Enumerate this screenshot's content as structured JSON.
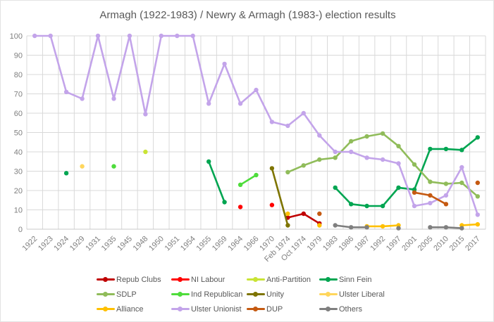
{
  "title": "Armagh (1922-1983) / Newry & Armagh (1983-) election results",
  "colors": {
    "title": "#595959",
    "axis_text": "#7f7f7f",
    "gridline": "#d9d9d9",
    "axis_line": "#c9c9c9",
    "background": "#ffffff"
  },
  "chart_data": {
    "type": "line",
    "title": "Armagh (1922-1983) / Newry & Armagh (1983-) election results",
    "xlabel": "",
    "ylabel": "",
    "grid": true,
    "legend_position": "bottom",
    "legend_layout": {
      "rows": 3,
      "columns": 4
    },
    "x_axis": {
      "label_rotation": -45
    },
    "y_axis": {
      "min": 0,
      "max": 100,
      "step": 10,
      "tick_labels": [
        "0",
        "10",
        "20",
        "30",
        "40",
        "50",
        "60",
        "70",
        "80",
        "90",
        "100"
      ]
    },
    "categories": [
      "1922",
      "1923",
      "1924",
      "1929",
      "1931",
      "1935",
      "1945",
      "1948",
      "1950",
      "1951",
      "1954",
      "1955",
      "1959",
      "1964",
      "1966",
      "1970",
      "Feb 1974",
      "Oct 1974",
      "1979",
      "1983",
      "1986",
      "1987",
      "1992",
      "1997",
      "2001",
      "2005",
      "2010",
      "2015",
      "2017"
    ],
    "series": [
      {
        "name": "Repub Clubs",
        "color": "#c00000",
        "points": [
          [
            "Feb 1974",
            6
          ],
          [
            "Oct 1974",
            8
          ],
          [
            "1979",
            3
          ]
        ]
      },
      {
        "name": "NI Labour",
        "color": "#ff0000",
        "points": [
          [
            "1964",
            11.5
          ],
          [
            "1970",
            12.5
          ]
        ]
      },
      {
        "name": "Anti-Partition",
        "color": "#c9e435",
        "points": [
          [
            "1948",
            40
          ]
        ]
      },
      {
        "name": "Sinn Fein",
        "color": "#00a551",
        "points": [
          [
            "1924",
            29
          ],
          [
            "1955",
            35
          ],
          [
            "1959",
            14
          ],
          [
            "1983",
            21.5
          ],
          [
            "1986",
            13
          ],
          [
            "1987",
            12
          ],
          [
            "1992",
            12
          ],
          [
            "1997",
            21.5
          ],
          [
            "2001",
            20.5
          ],
          [
            "2005",
            41.5
          ],
          [
            "2010",
            41.5
          ],
          [
            "2015",
            41
          ],
          [
            "2017",
            47.5
          ]
        ]
      },
      {
        "name": "SDLP",
        "color": "#90bc5a",
        "points": [
          [
            "Feb 1974",
            29.5
          ],
          [
            "Oct 1974",
            33
          ],
          [
            "1979",
            36
          ],
          [
            "1983",
            37
          ],
          [
            "1986",
            45.5
          ],
          [
            "1987",
            48
          ],
          [
            "1992",
            49.5
          ],
          [
            "1997",
            43
          ],
          [
            "2001",
            33.5
          ],
          [
            "2005",
            24.5
          ],
          [
            "2010",
            23.5
          ],
          [
            "2015",
            24
          ],
          [
            "2017",
            17
          ]
        ]
      },
      {
        "name": "Ind Republican",
        "color": "#4edc3b",
        "points": [
          [
            "1935",
            32.5
          ],
          [
            "1964",
            23
          ],
          [
            "1966",
            28
          ]
        ]
      },
      {
        "name": "Unity",
        "color": "#7e7400",
        "points": [
          [
            "1970",
            31.5
          ],
          [
            "Feb 1974",
            2
          ]
        ]
      },
      {
        "name": "Ulster Liberal",
        "color": "#ffd65c",
        "points": [
          [
            "1929",
            32.5
          ]
        ]
      },
      {
        "name": "Alliance",
        "color": "#ffc000",
        "points": [
          [
            "Feb 1974",
            8
          ],
          [
            "1979",
            2
          ],
          [
            "1987",
            1.5
          ],
          [
            "1992",
            1.5
          ],
          [
            "1997",
            2
          ],
          [
            "2015",
            2
          ],
          [
            "2017",
            2.5
          ]
        ]
      },
      {
        "name": "Ulster Unionist",
        "color": "#c3a4ea",
        "points": [
          [
            "1922",
            100
          ],
          [
            "1923",
            100
          ],
          [
            "1924",
            71
          ],
          [
            "1929",
            67.5
          ],
          [
            "1931",
            100
          ],
          [
            "1935",
            67.5
          ],
          [
            "1945",
            100
          ],
          [
            "1948",
            59.5
          ],
          [
            "1950",
            100
          ],
          [
            "1951",
            100
          ],
          [
            "1954",
            100
          ],
          [
            "1955",
            65
          ],
          [
            "1959",
            85.5
          ],
          [
            "1964",
            65
          ],
          [
            "1966",
            72
          ],
          [
            "1970",
            55.5
          ],
          [
            "Feb 1974",
            53.5
          ],
          [
            "Oct 1974",
            60
          ],
          [
            "1979",
            48.5
          ],
          [
            "1983",
            40
          ],
          [
            "1986",
            40
          ],
          [
            "1987",
            37
          ],
          [
            "1992",
            36
          ],
          [
            "1997",
            34
          ],
          [
            "2001",
            12
          ],
          [
            "2005",
            13.5
          ],
          [
            "2010",
            17.5
          ],
          [
            "2015",
            32
          ],
          [
            "2017",
            7.5
          ]
        ]
      },
      {
        "name": "DUP",
        "color": "#c55a11",
        "points": [
          [
            "1979",
            8
          ],
          [
            "2001",
            19
          ],
          [
            "2005",
            17.5
          ],
          [
            "2010",
            13
          ],
          [
            "2017",
            24
          ]
        ]
      },
      {
        "name": "Others",
        "color": "#7f7f7f",
        "points": [
          [
            "1983",
            2
          ],
          [
            "1986",
            1
          ],
          [
            "1987",
            1
          ],
          [
            "1997",
            0.5
          ],
          [
            "2005",
            1
          ],
          [
            "2010",
            1
          ],
          [
            "2015",
            0.5
          ]
        ]
      }
    ]
  }
}
